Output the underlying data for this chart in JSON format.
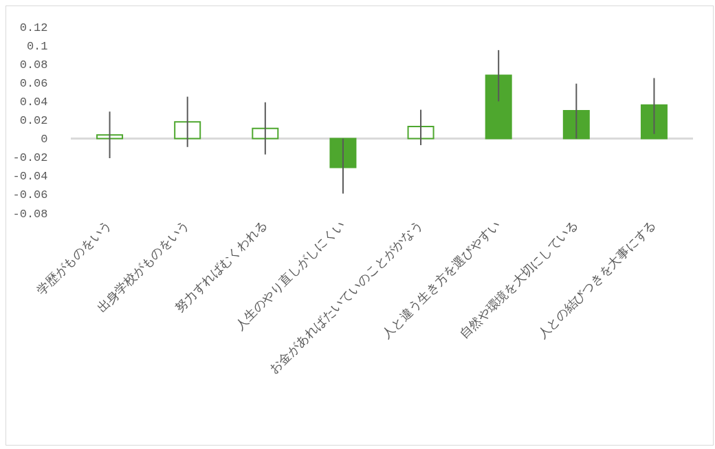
{
  "chart_data": {
    "type": "bar",
    "categories": [
      "学歴がものをいう",
      "出身学校がものをいう",
      "努力すればむくわれる",
      "人生のやり直しがしにくい",
      "お金があればたいていのことがかなう",
      "人と違う生き方を選びやすい",
      "自然や環境を大切にしている",
      "人との結びつきを大事にする"
    ],
    "values": [
      0.004,
      0.018,
      0.011,
      -0.031,
      0.013,
      0.068,
      0.03,
      0.036
    ],
    "errors": [
      [
        -0.021,
        0.029
      ],
      [
        -0.009,
        0.045
      ],
      [
        -0.017,
        0.039
      ],
      [
        -0.059,
        0
      ],
      [
        -0.007,
        0.031
      ],
      [
        0.04,
        0.095
      ],
      [
        0,
        0.059
      ],
      [
        0.005,
        0.065
      ]
    ],
    "color": "#4ea72e",
    "colors": [
      "#ffffff",
      "#ffffff",
      "#ffffff",
      "#4ea72e",
      "#ffffff",
      "#4ea72e",
      "#4ea72e",
      "#4ea72e"
    ],
    "ylim": [
      -0.08,
      0.12
    ],
    "yticks": [
      -0.08,
      -0.06,
      -0.04,
      -0.02,
      0,
      0.02,
      0.04,
      0.06,
      0.08,
      0.1,
      0.12
    ],
    "ref_lines": [
      {
        "axis": "y",
        "value": 0,
        "color": "#d9d9d9"
      }
    ],
    "grid": false
  }
}
